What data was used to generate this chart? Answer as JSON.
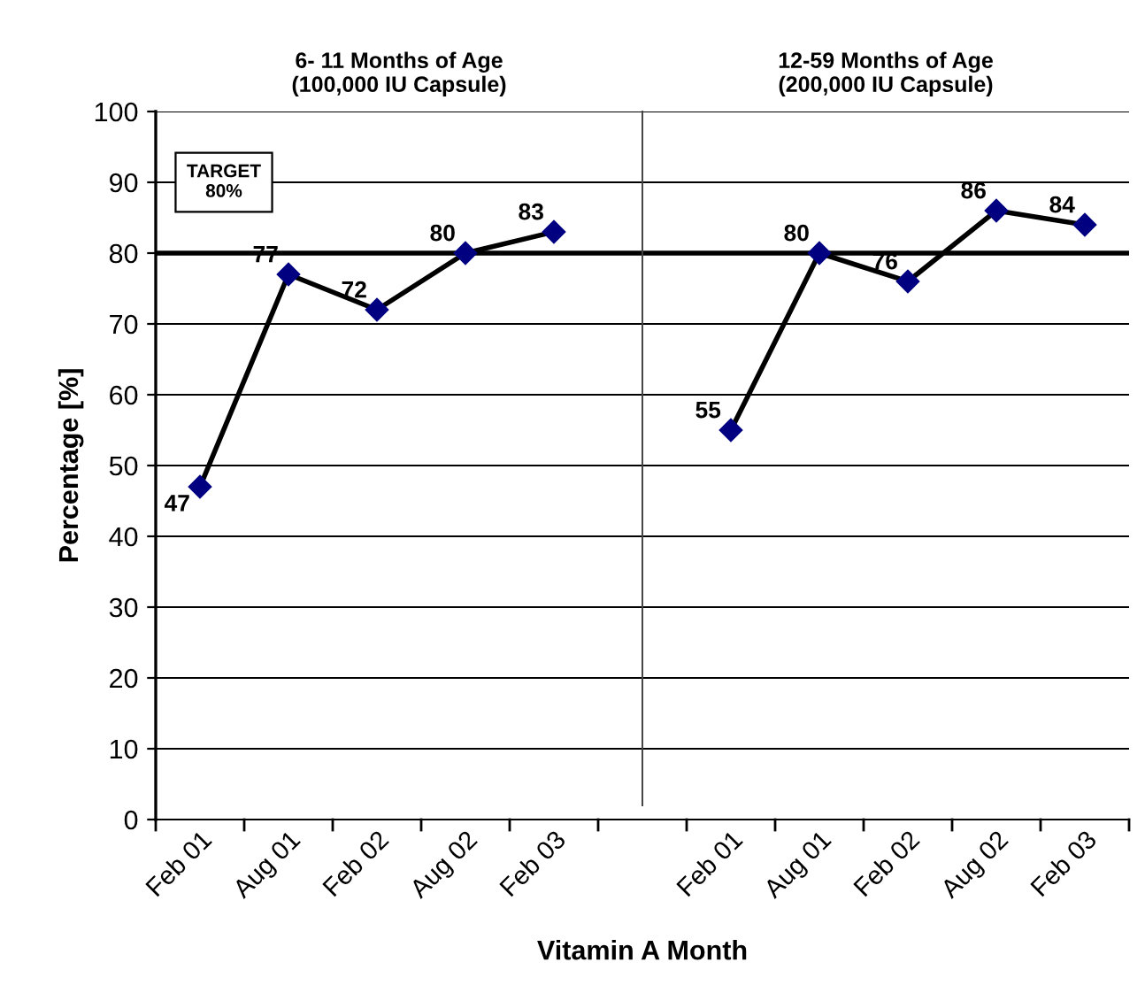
{
  "chart_data": [
    {
      "type": "line",
      "title": "6- 11 Months of Age\n(100,000 IU Capsule)",
      "categories": [
        "Feb 01",
        "Aug 01",
        "Feb 02",
        "Aug 02",
        "Feb 03"
      ],
      "series": [
        {
          "color": "#000080",
          "values": [
            47,
            77,
            72,
            80,
            83
          ]
        }
      ],
      "xlabel": "Vitamin A Month",
      "ylabel": "Percentage [%]",
      "ylim": [
        0,
        100
      ],
      "yticks": [
        0,
        10,
        20,
        30,
        40,
        50,
        60,
        70,
        80,
        90,
        100
      ],
      "ref_lines": [
        {
          "axis": "y",
          "value": 80,
          "label": "TARGET\n80%",
          "color": "#000000"
        }
      ],
      "grid": "y",
      "marker": "diamond",
      "line_style": "solid",
      "data_labels": true
    },
    {
      "type": "line",
      "title": "12-59 Months of Age\n(200,000 IU Capsule)",
      "categories": [
        "Feb 01",
        "Aug 01",
        "Feb 02",
        "Aug 02",
        "Feb 03"
      ],
      "series": [
        {
          "color": "#000080",
          "values": [
            55,
            80,
            76,
            86,
            84
          ]
        }
      ],
      "ylim": [
        0,
        100
      ],
      "yticks": [
        0,
        10,
        20,
        30,
        40,
        50,
        60,
        70,
        80,
        90,
        100
      ],
      "ref_lines": [
        {
          "axis": "y",
          "value": 80,
          "color": "#000000"
        }
      ],
      "grid": "y",
      "marker": "diamond",
      "line_style": "solid",
      "data_labels": true,
      "tick_labels": "x"
    }
  ]
}
